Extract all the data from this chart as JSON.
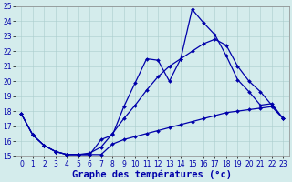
{
  "xlabel": "Graphe des températures (°c)",
  "xlim": [
    -0.5,
    23.5
  ],
  "ylim": [
    15,
    25
  ],
  "xticks": [
    0,
    1,
    2,
    3,
    4,
    5,
    6,
    7,
    8,
    9,
    10,
    11,
    12,
    13,
    14,
    15,
    16,
    17,
    18,
    19,
    20,
    21,
    22,
    23
  ],
  "yticks": [
    15,
    16,
    17,
    18,
    19,
    20,
    21,
    22,
    23,
    24,
    25
  ],
  "bg_color": "#d4ecec",
  "line_color": "#0000aa",
  "grid_color": "#aacccc",
  "series1_y": [
    17.8,
    16.4,
    15.7,
    15.3,
    15.1,
    15.1,
    15.1,
    16.1,
    16.4,
    18.3,
    19.9,
    21.5,
    21.4,
    20.0,
    21.5,
    24.8,
    23.9,
    23.1,
    21.7,
    20.1,
    19.3,
    18.4,
    18.5,
    17.5
  ],
  "series2_y": [
    17.8,
    16.4,
    15.7,
    15.3,
    15.1,
    15.1,
    15.2,
    15.6,
    16.5,
    17.5,
    18.4,
    19.4,
    20.3,
    21.0,
    21.5,
    22.0,
    22.5,
    22.8,
    22.4,
    21.0,
    20.0,
    19.3,
    18.4,
    17.5
  ],
  "series3_y": [
    17.8,
    16.4,
    15.7,
    15.3,
    15.1,
    15.1,
    15.1,
    15.1,
    15.8,
    16.1,
    16.3,
    16.5,
    16.7,
    16.9,
    17.1,
    17.3,
    17.5,
    17.7,
    17.9,
    18.0,
    18.1,
    18.2,
    18.3,
    17.5
  ],
  "font_size_xlabel": 7.5,
  "marker": "D",
  "marker_size": 2.0,
  "linewidth": 0.9,
  "tick_fontsize": 5.5
}
